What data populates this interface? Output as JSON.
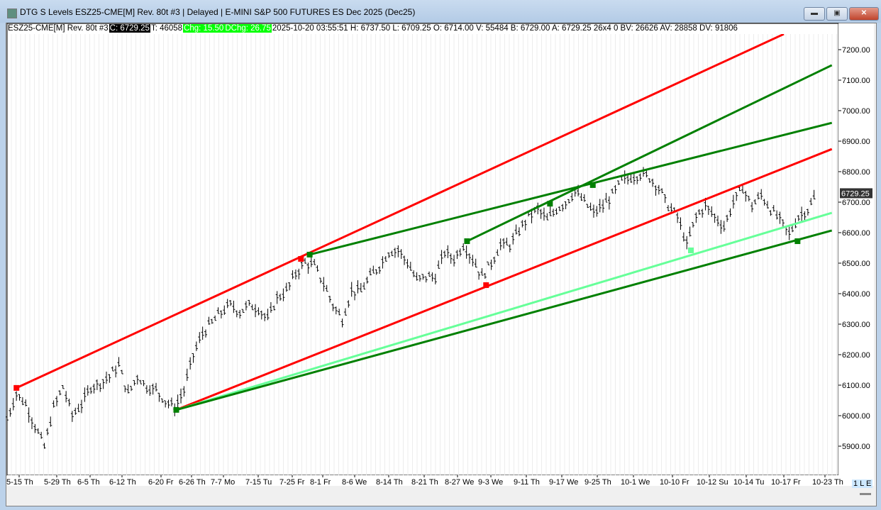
{
  "window": {
    "title": "DTG S Levels ESZ25-CME[M]  Rev. 80t #3 | Delayed | E-MINI S&P 500 FUTURES ES Dec 2025 (Dec25)",
    "buttons": {
      "minimize": "▬",
      "maximize": "▣",
      "close": "✕"
    }
  },
  "infobar": {
    "symbol": "ESZ25-CME[M]  Rev. 80t #3",
    "close": "C: 6729.25",
    "ticks": "T: 46058",
    "chg": "Chg: 15.50",
    "dchg": "DChg: 26.75",
    "rest": "2025-10-20 03:55:51 H: 6737.50 L: 6709.25 O: 6714.00 V: 55484 B: 6729.00 A: 6729.25 26x4 0 BV: 26626 AV: 28858 DV: 91806"
  },
  "status_label": "1 L E",
  "chart_data": {
    "type": "ohlc-bar",
    "y_ticks": [
      7200,
      7100,
      7000,
      6900,
      6800,
      6700,
      6600,
      6500,
      6400,
      6300,
      6200,
      6100,
      6000,
      5900
    ],
    "y_tick_labels": [
      "7200.00",
      "7100.00",
      "7000.00",
      "6900.00",
      "6800.00",
      "6700.00",
      "6600.00",
      "6500.00",
      "6400.00",
      "6300.00",
      "6200.00",
      "6100.00",
      "6000.00",
      "5900.00"
    ],
    "ylim": [
      5810,
      7250
    ],
    "x_tick_labels": [
      "5-15 Th",
      "5-29 Th",
      "6-5 Th",
      "6-12 Th",
      "6-20 Fr",
      "6-26 Th",
      "7-7 Mo",
      "7-15 Tu",
      "7-25 Fr",
      "8-1 Fr",
      "8-6 We",
      "8-14 Th",
      "8-21 Th",
      "8-27 We",
      "9-3 We",
      "9-11 Th",
      "9-17 We",
      "9-25 Th",
      "10-1 We",
      "10-10 Fr",
      "10-12 Su",
      "10-14 Tu",
      "10-17 Fr",
      "10-23 Th"
    ],
    "current_price_label": "6729.25",
    "closes": [
      5991,
      6072,
      6037,
      5967,
      5898,
      6026,
      6095,
      6002,
      6037,
      6095,
      6107,
      6130,
      6165,
      6072,
      6130,
      6095,
      6084,
      6049,
      6026,
      6084,
      6200,
      6270,
      6305,
      6340,
      6363,
      6340,
      6363,
      6351,
      6316,
      6386,
      6409,
      6467,
      6502,
      6491,
      6433,
      6363,
      6316,
      6409,
      6409,
      6456,
      6491,
      6537,
      6544,
      6502,
      6444,
      6456,
      6456,
      6537,
      6514,
      6560,
      6514,
      6456,
      6502,
      6560,
      6560,
      6607,
      6653,
      6677,
      6642,
      6677,
      6700,
      6735,
      6700,
      6665,
      6688,
      6723,
      6770,
      6781,
      6793,
      6781,
      6747,
      6688,
      6653,
      6560,
      6653,
      6688,
      6653,
      6619,
      6700,
      6747,
      6688,
      6723,
      6677,
      6642,
      6595,
      6653,
      6677,
      6729.25
    ],
    "trendlines": [
      {
        "color": "#ff0000",
        "from": {
          "date": "5-14",
          "price": 6091
        },
        "to": {
          "date": "10-17",
          "price": 7251
        }
      },
      {
        "color": "#ff0000",
        "from": {
          "date": "6-23",
          "price": 6019
        },
        "to": {
          "date": "10-24",
          "price": 6874
        }
      },
      {
        "color": "#66ff99",
        "from": {
          "date": "6-23",
          "price": 6019
        },
        "to": {
          "date": "10-24",
          "price": 6665
        }
      },
      {
        "color": "#008000",
        "from": {
          "date": "6-23",
          "price": 6019
        },
        "to": {
          "date": "10-24",
          "price": 6607
        }
      },
      {
        "color": "#008000",
        "from": {
          "date": "7-29",
          "price": 6528
        },
        "to": {
          "date": "10-24",
          "price": 6960
        }
      },
      {
        "color": "#008000",
        "from": {
          "date": "8-29",
          "price": 6572
        },
        "to": {
          "date": "10-24",
          "price": 7149
        }
      }
    ],
    "markers": [
      {
        "color": "#ff0000",
        "date": "5-14",
        "price": 6091
      },
      {
        "color": "#ff0000",
        "date": "7-27",
        "price": 6514
      },
      {
        "color": "#ff0000",
        "date": "9-2",
        "price": 6428
      },
      {
        "color": "#008000",
        "date": "6-23",
        "price": 6019
      },
      {
        "color": "#008000",
        "date": "7-29",
        "price": 6528
      },
      {
        "color": "#008000",
        "date": "8-29",
        "price": 6572
      },
      {
        "color": "#008000",
        "date": "9-15",
        "price": 6695
      },
      {
        "color": "#008000",
        "date": "9-24",
        "price": 6756
      },
      {
        "color": "#008000",
        "date": "10-19",
        "price": 6572
      },
      {
        "color": "#66ff99",
        "date": "10-11",
        "price": 6542
      }
    ]
  }
}
